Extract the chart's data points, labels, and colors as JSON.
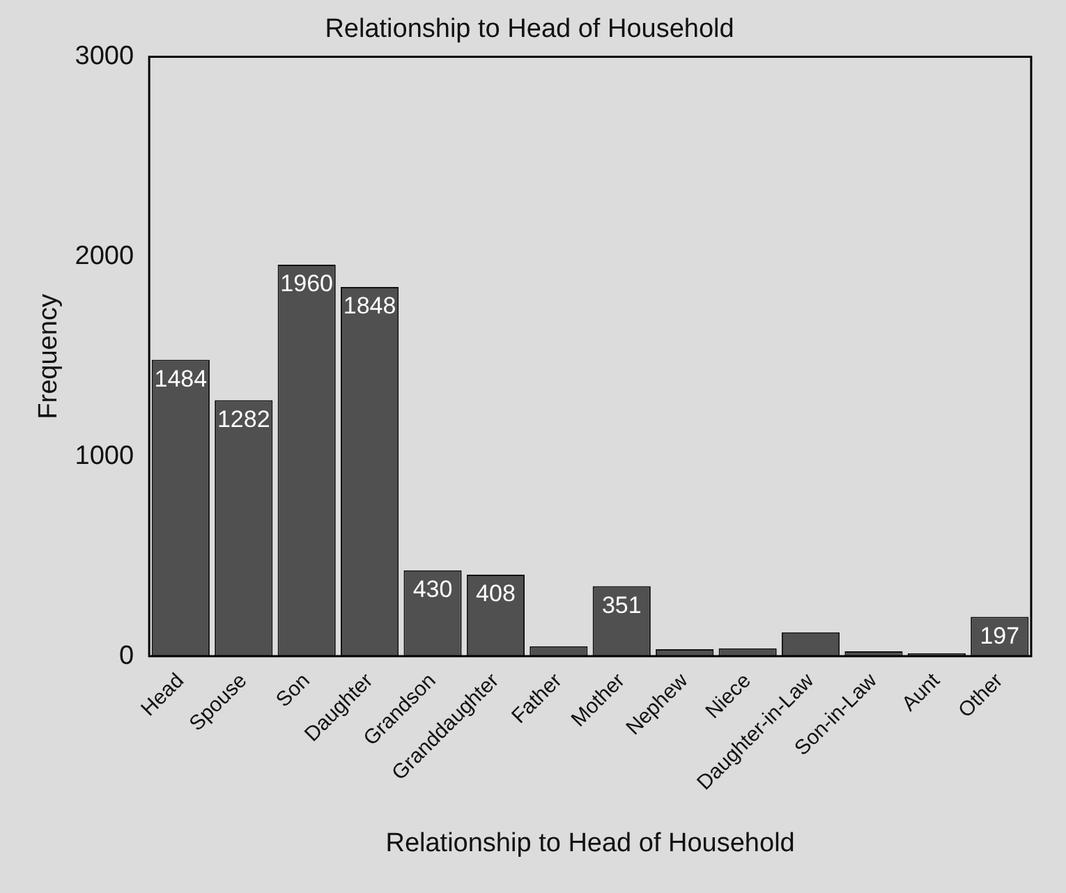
{
  "chart_data": {
    "type": "bar",
    "title": "Relationship to Head of Household",
    "xlabel": "Relationship to Head of Household",
    "ylabel": "Frequency",
    "categories": [
      "Head",
      "Spouse",
      "Son",
      "Daughter",
      "Grandson",
      "Granddaughter",
      "Father",
      "Mother",
      "Nephew",
      "Niece",
      "Daughter-in-Law",
      "Son-in-Law",
      "Aunt",
      "Other"
    ],
    "values": [
      1484,
      1282,
      1960,
      1848,
      430,
      408,
      50,
      351,
      35,
      40,
      120,
      25,
      15,
      197
    ],
    "value_labels": [
      "1484",
      "1282",
      "1960",
      "1848",
      "430",
      "408",
      null,
      "351",
      null,
      null,
      null,
      null,
      null,
      "197"
    ],
    "color": "#505050",
    "ylim": [
      0,
      3000
    ],
    "yticks": [
      0,
      1000,
      2000,
      3000
    ],
    "grid": false,
    "legend": false
  }
}
